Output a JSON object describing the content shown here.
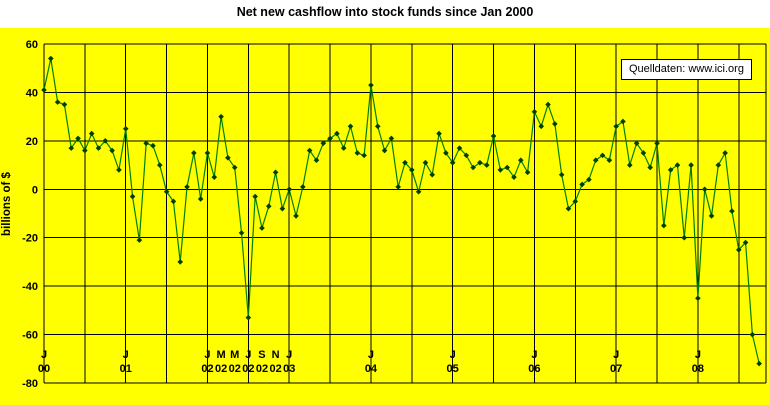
{
  "title": "Net new cashflow into stock funds since Jan 2000",
  "source_box": {
    "label": "Quelldaten: www.ici.org"
  },
  "chart_data": {
    "type": "line",
    "title": "Net new cashflow into stock funds since Jan 2000",
    "xlabel": "",
    "ylabel": "billions of $",
    "ylim": [
      -80,
      60
    ],
    "y_ticks": [
      60,
      40,
      20,
      0,
      -20,
      -40,
      -60,
      -80
    ],
    "x_start": "2000-01",
    "x_end": "2008-10",
    "frequency": "monthly",
    "grid": {
      "horizontal_step_value": 20,
      "vertical_step_months": 6,
      "grid_on": true
    },
    "legend_position": "top-right",
    "x_ticks": [
      {
        "month": "J",
        "year": "00",
        "m": 0
      },
      {
        "month": "J",
        "year": "01",
        "m": 12
      },
      {
        "month": "J",
        "year": "02",
        "m": 24
      },
      {
        "month": "M",
        "year": "02",
        "m": 26
      },
      {
        "month": "M",
        "year": "02",
        "m": 28
      },
      {
        "month": "J",
        "year": "02",
        "m": 30
      },
      {
        "month": "S",
        "year": "02",
        "m": 32
      },
      {
        "month": "N",
        "year": "02",
        "m": 34
      },
      {
        "month": "J",
        "year": "03",
        "m": 36
      },
      {
        "month": "J",
        "year": "04",
        "m": 48
      },
      {
        "month": "J",
        "year": "05",
        "m": 60
      },
      {
        "month": "J",
        "year": "06",
        "m": 72
      },
      {
        "month": "J",
        "year": "07",
        "m": 84
      },
      {
        "month": "J",
        "year": "08",
        "m": 96
      }
    ],
    "series": [
      {
        "name": "Net new cashflow into stock funds",
        "values": [
          41,
          54,
          36,
          35,
          17,
          21,
          16,
          23,
          17,
          20,
          16,
          8,
          25,
          -3,
          -21,
          19,
          18,
          10,
          -1,
          -5,
          -30,
          1,
          15,
          -4,
          15,
          5,
          30,
          13,
          9,
          -18,
          -53,
          -3,
          -16,
          -7,
          7,
          -8,
          0,
          -11,
          1,
          16,
          12,
          19,
          21,
          23,
          17,
          26,
          15,
          14,
          43,
          26,
          16,
          21,
          1,
          11,
          8,
          -1,
          11,
          6,
          23,
          15,
          11,
          17,
          14,
          9,
          11,
          10,
          22,
          8,
          9,
          5,
          12,
          7,
          32,
          26,
          35,
          27,
          6,
          -8,
          -5,
          2,
          4,
          12,
          14,
          12,
          26,
          28,
          10,
          19,
          15,
          9,
          19,
          -15,
          8,
          10,
          -20,
          10,
          -45,
          0,
          -11,
          10,
          15,
          -9,
          -25,
          -22,
          -60,
          -72
        ]
      }
    ],
    "colors": {
      "plot_background": "#FFFF00",
      "line": "#008000",
      "marker": "#004000",
      "grid": "#000000",
      "text": "#000000"
    }
  }
}
